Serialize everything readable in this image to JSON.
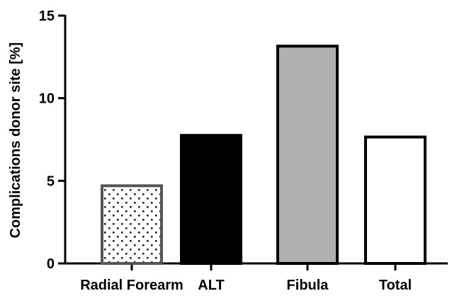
{
  "chart_data": {
    "type": "bar",
    "title": "",
    "xlabel": "",
    "ylabel": "Complications donor site [%]",
    "ylim": [
      0,
      15
    ],
    "yticks": [
      0,
      5,
      10,
      15
    ],
    "grid": false,
    "categories": [
      "Radial Forearm",
      "ALT",
      "Fibula",
      "Total"
    ],
    "values": [
      4.7,
      7.75,
      13.15,
      7.65
    ],
    "bar_styles": [
      {
        "fill": "#ffffff",
        "pattern": "dots",
        "stroke": "#555555"
      },
      {
        "fill": "#000000",
        "pattern": "none",
        "stroke": "#000000"
      },
      {
        "fill": "#b0b0b0",
        "pattern": "none",
        "stroke": "#000000"
      },
      {
        "fill": "#ffffff",
        "pattern": "none",
        "stroke": "#000000"
      }
    ]
  }
}
